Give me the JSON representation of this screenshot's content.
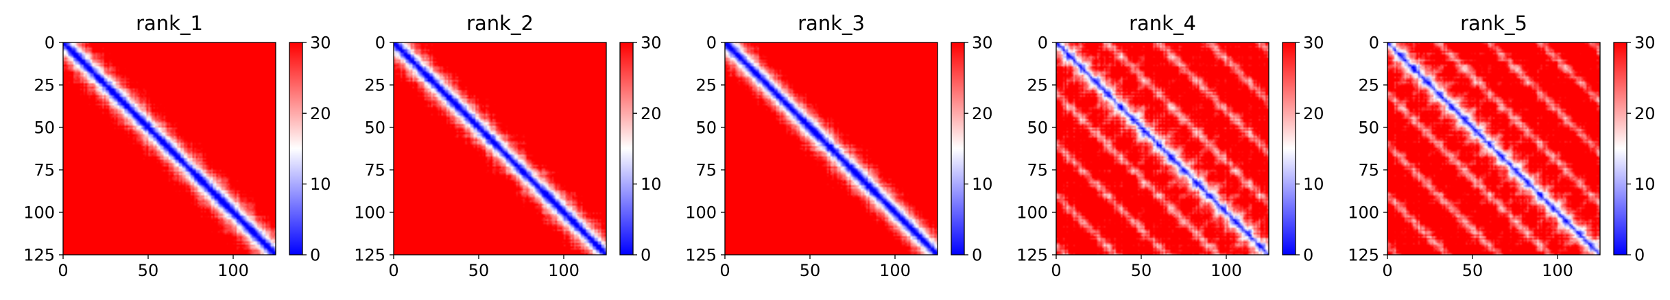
{
  "chart_data": {
    "type": "heatmap",
    "colormap": {
      "name": "bwr",
      "low": "#0000ff",
      "mid": "#ffffff",
      "high": "#ff0000"
    },
    "panels": [
      {
        "title": "rank_1",
        "pattern": "single-diagonal",
        "size": 125
      },
      {
        "title": "rank_2",
        "pattern": "single-diagonal",
        "size": 125
      },
      {
        "title": "rank_3",
        "pattern": "single-diagonal",
        "size": 125
      },
      {
        "title": "rank_4",
        "pattern": "diagonal-with-parallel-bands",
        "size": 125
      },
      {
        "title": "rank_5",
        "pattern": "diagonal-with-parallel-bands",
        "size": 125
      }
    ],
    "x_ticks": [
      0,
      50,
      100
    ],
    "y_ticks": [
      0,
      25,
      50,
      75,
      100,
      125
    ],
    "xlim": [
      0,
      125
    ],
    "ylim": [
      125,
      0
    ],
    "colorbar": {
      "ticks": [
        0,
        10,
        20,
        30
      ],
      "range": [
        0,
        30
      ]
    }
  }
}
